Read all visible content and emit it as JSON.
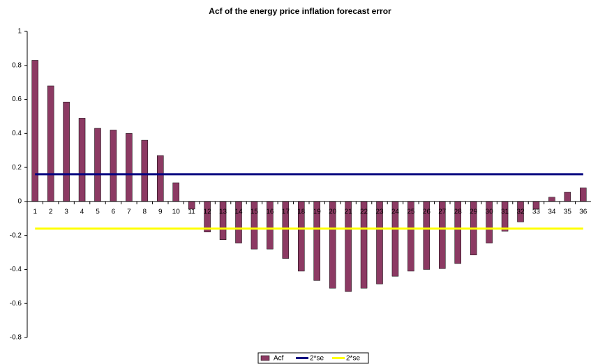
{
  "chart_data": {
    "type": "bar",
    "title": "Acf of the energy price inflation forecast error",
    "categories": [
      1,
      2,
      3,
      4,
      5,
      6,
      7,
      8,
      9,
      10,
      11,
      12,
      13,
      14,
      15,
      16,
      17,
      18,
      19,
      20,
      21,
      22,
      23,
      24,
      25,
      26,
      27,
      28,
      29,
      30,
      31,
      32,
      33,
      34,
      35,
      36
    ],
    "series": [
      {
        "name": "Acf",
        "type": "bar",
        "color": "#8c3a63",
        "values": [
          0.83,
          0.68,
          0.585,
          0.49,
          0.43,
          0.42,
          0.4,
          0.36,
          0.27,
          0.11,
          -0.045,
          -0.18,
          -0.225,
          -0.245,
          -0.28,
          -0.28,
          -0.335,
          -0.41,
          -0.465,
          -0.51,
          -0.53,
          -0.51,
          -0.485,
          -0.44,
          -0.41,
          -0.4,
          -0.395,
          -0.365,
          -0.315,
          -0.245,
          -0.175,
          -0.12,
          -0.045,
          0.025,
          0.055,
          0.08
        ]
      },
      {
        "name": "2*se",
        "type": "line",
        "color": "#000080",
        "values": [
          0.16,
          0.16,
          0.16,
          0.16,
          0.16,
          0.16,
          0.16,
          0.16,
          0.16,
          0.16,
          0.16,
          0.16,
          0.16,
          0.16,
          0.16,
          0.16,
          0.16,
          0.16,
          0.16,
          0.16,
          0.16,
          0.16,
          0.16,
          0.16,
          0.16,
          0.16,
          0.16,
          0.16,
          0.16,
          0.16,
          0.16,
          0.16,
          0.16,
          0.16,
          0.16,
          0.16
        ]
      },
      {
        "name": "2*se",
        "type": "line",
        "color": "#ffff00",
        "values": [
          -0.16,
          -0.16,
          -0.16,
          -0.16,
          -0.16,
          -0.16,
          -0.16,
          -0.16,
          -0.16,
          -0.16,
          -0.16,
          -0.16,
          -0.16,
          -0.16,
          -0.16,
          -0.16,
          -0.16,
          -0.16,
          -0.16,
          -0.16,
          -0.16,
          -0.16,
          -0.16,
          -0.16,
          -0.16,
          -0.16,
          -0.16,
          -0.16,
          -0.16,
          -0.16,
          -0.16,
          -0.16,
          -0.16,
          -0.16,
          -0.16,
          -0.16
        ]
      }
    ],
    "ylim": [
      -0.8,
      1
    ],
    "yticks": [
      -0.8,
      -0.6,
      -0.4,
      -0.2,
      0,
      0.2,
      0.4,
      0.6,
      0.8,
      1
    ],
    "grid": false,
    "legend": "bottom"
  }
}
